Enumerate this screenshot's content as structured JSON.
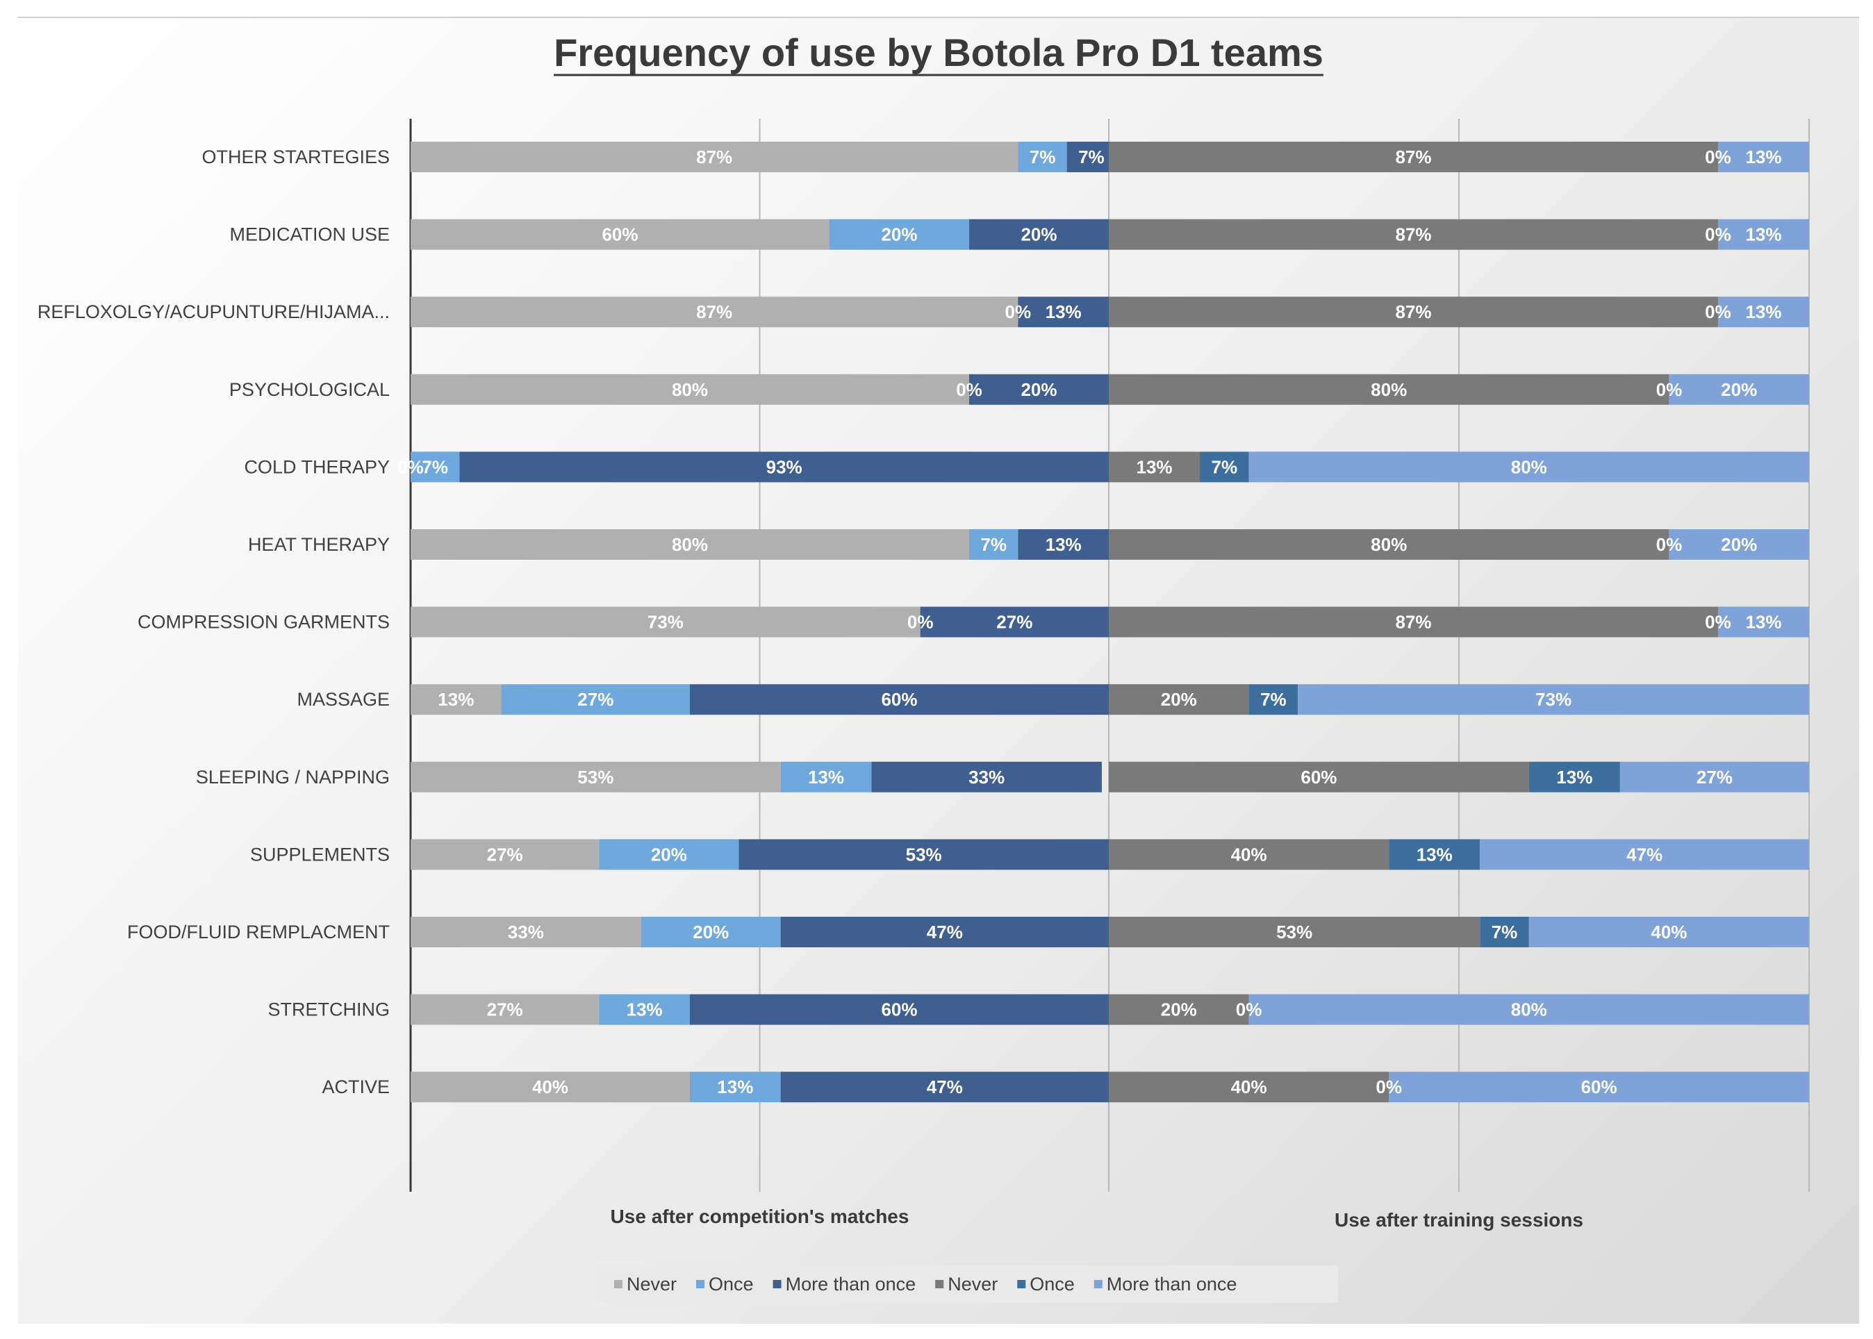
{
  "chart_data": {
    "type": "bar",
    "orientation": "horizontal",
    "stacked": true,
    "title": "Frequency of use by Botola Pro D1 teams",
    "categories": [
      "OTHER STARTEGIES",
      "MEDICATION USE",
      "REFLOXOLGY/ACUPUNTURE/HIJAMA...",
      "PSYCHOLOGICAL",
      "COLD THERAPY",
      "HEAT THERAPY",
      "COMPRESSION GARMENTS",
      "MASSAGE",
      "SLEEPING / NAPPING",
      "SUPPLEMENTS",
      "FOOD/FLUID REMPLACMENT",
      "STRETCHING",
      "ACTIVE"
    ],
    "groups": [
      {
        "label": "Use after competition's matches",
        "series": [
          {
            "name": "Never",
            "color": "#b0b0b0",
            "values": [
              87,
              60,
              87,
              80,
              0,
              80,
              73,
              13,
              53,
              27,
              33,
              27,
              40
            ]
          },
          {
            "name": "Once",
            "color": "#6fa8dc",
            "values": [
              7,
              20,
              0,
              0,
              7,
              7,
              0,
              27,
              13,
              20,
              20,
              13,
              13
            ]
          },
          {
            "name": "More than once",
            "color": "#3f5f91",
            "values": [
              7,
              20,
              13,
              20,
              93,
              13,
              27,
              60,
              33,
              53,
              47,
              60,
              47
            ]
          }
        ]
      },
      {
        "label": "Use after training sessions",
        "series": [
          {
            "name": "Never",
            "color": "#7a7a7a",
            "values": [
              87,
              87,
              87,
              80,
              13,
              80,
              87,
              20,
              60,
              40,
              53,
              20,
              40
            ]
          },
          {
            "name": "Once",
            "color": "#3c6f9e",
            "values": [
              0,
              0,
              0,
              0,
              7,
              0,
              0,
              7,
              13,
              13,
              7,
              0,
              0
            ]
          },
          {
            "name": "More than once",
            "color": "#7fa3d9",
            "values": [
              13,
              13,
              13,
              20,
              80,
              20,
              13,
              73,
              27,
              47,
              40,
              80,
              60
            ]
          }
        ]
      }
    ],
    "value_format": "{v}%",
    "xlim": [
      0,
      100
    ],
    "grid": true,
    "legend_position": "bottom"
  }
}
